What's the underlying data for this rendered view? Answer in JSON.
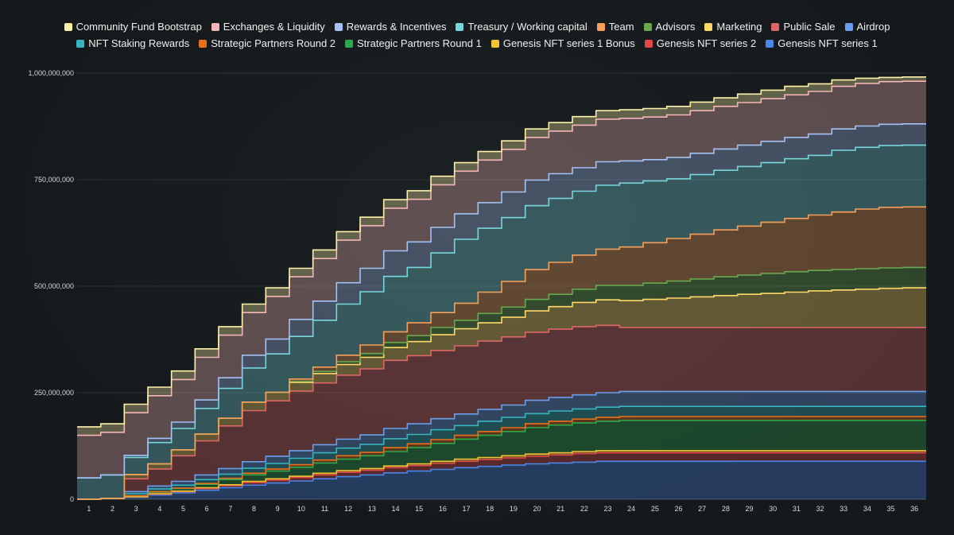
{
  "chart_data": {
    "type": "area",
    "stacked": true,
    "step": true,
    "x": [
      1,
      2,
      3,
      4,
      5,
      6,
      7,
      8,
      9,
      10,
      11,
      12,
      13,
      14,
      15,
      16,
      17,
      18,
      19,
      20,
      21,
      22,
      23,
      24,
      25,
      26,
      27,
      28,
      29,
      30,
      31,
      32,
      33,
      34,
      35,
      36
    ],
    "ylim": [
      0,
      1000000000
    ],
    "yticks": [
      0,
      250000000,
      500000000,
      750000000,
      1000000000
    ],
    "ytick_labels": [
      "0",
      "250,000,000",
      "500,000,000",
      "750,000,000",
      "1,000,000,000"
    ],
    "grid": true,
    "legend_position": "top",
    "series": [
      {
        "name": "Genesis NFT series 1",
        "color": "#4a86e8",
        "values": [
          0,
          2000000,
          5000000,
          10000000,
          15000000,
          21000000,
          27000000,
          33000000,
          38000000,
          43000000,
          48000000,
          53000000,
          57000000,
          62000000,
          66000000,
          70000000,
          74000000,
          77000000,
          80000000,
          83000000,
          85000000,
          87000000,
          89000000,
          89000000,
          89000000,
          89000000,
          89000000,
          89000000,
          89000000,
          89000000,
          89000000,
          89000000,
          89000000,
          89000000,
          89000000,
          89000000
        ]
      },
      {
        "name": "Genesis NFT series 2",
        "color": "#e04848",
        "values": [
          0,
          0,
          1000000,
          2000000,
          3000000,
          4000000,
          5000000,
          6000000,
          7000000,
          8000000,
          9000000,
          10000000,
          11000000,
          12000000,
          13000000,
          14000000,
          15000000,
          16000000,
          17000000,
          18000000,
          19000000,
          20000000,
          20000000,
          20000000,
          20000000,
          20000000,
          20000000,
          20000000,
          20000000,
          20000000,
          20000000,
          20000000,
          20000000,
          20000000,
          20000000,
          20000000
        ]
      },
      {
        "name": "Genesis NFT series 1 Bonus",
        "color": "#f1c232",
        "values": [
          0,
          0,
          0,
          1000000,
          1000000,
          2000000,
          2000000,
          3000000,
          3000000,
          3000000,
          4000000,
          4000000,
          4000000,
          4000000,
          4000000,
          5000000,
          5000000,
          5000000,
          5000000,
          5000000,
          5000000,
          5000000,
          5000000,
          5000000,
          5000000,
          5000000,
          5000000,
          5000000,
          5000000,
          5000000,
          5000000,
          5000000,
          5000000,
          5000000,
          5000000,
          5000000
        ]
      },
      {
        "name": "Strategic Partners Round 1",
        "color": "#2ea84e",
        "values": [
          0,
          0,
          2000000,
          4000000,
          6000000,
          8000000,
          12000000,
          15000000,
          18000000,
          21000000,
          24000000,
          27000000,
          30000000,
          34000000,
          38000000,
          42000000,
          47000000,
          52000000,
          57000000,
          62000000,
          65000000,
          67000000,
          69000000,
          71000000,
          71000000,
          71000000,
          71000000,
          71000000,
          71000000,
          71000000,
          71000000,
          71000000,
          71000000,
          71000000,
          71000000,
          71000000
        ]
      },
      {
        "name": "Strategic Partners Round 2",
        "color": "#e8711c",
        "values": [
          0,
          0,
          0,
          1000000,
          1000000,
          2000000,
          3000000,
          4000000,
          5000000,
          6000000,
          7000000,
          8000000,
          8000000,
          9000000,
          9000000,
          9000000,
          9000000,
          9000000,
          9000000,
          9000000,
          9000000,
          9000000,
          9000000,
          9000000,
          9000000,
          9000000,
          9000000,
          9000000,
          9000000,
          9000000,
          9000000,
          9000000,
          9000000,
          9000000,
          9000000,
          9000000
        ]
      },
      {
        "name": "NFT Staking Rewards",
        "color": "#36b5c0",
        "values": [
          0,
          0,
          5000000,
          6000000,
          7000000,
          9000000,
          10000000,
          12000000,
          13000000,
          15000000,
          17000000,
          18000000,
          19000000,
          21000000,
          22000000,
          23000000,
          23000000,
          24000000,
          24000000,
          24000000,
          24000000,
          24000000,
          24000000,
          24000000,
          24000000,
          24000000,
          24000000,
          24000000,
          24000000,
          24000000,
          24000000,
          24000000,
          24000000,
          24000000,
          24000000,
          24000000
        ]
      },
      {
        "name": "Airdrop",
        "color": "#6d9eeb",
        "values": [
          0,
          0,
          5000000,
          7000000,
          9000000,
          11000000,
          13000000,
          15000000,
          17000000,
          18000000,
          19000000,
          21000000,
          22000000,
          24000000,
          25000000,
          26000000,
          27000000,
          28000000,
          29000000,
          31000000,
          32000000,
          33000000,
          34000000,
          35000000,
          35000000,
          35000000,
          35000000,
          35000000,
          35000000,
          35000000,
          35000000,
          35000000,
          35000000,
          35000000,
          35000000,
          35000000
        ]
      },
      {
        "name": "Public Sale",
        "color": "#e06666",
        "values": [
          0,
          0,
          30000000,
          40000000,
          60000000,
          80000000,
          100000000,
          120000000,
          130000000,
          140000000,
          145000000,
          150000000,
          155000000,
          160000000,
          160000000,
          160000000,
          160000000,
          160000000,
          160000000,
          160000000,
          160000000,
          160000000,
          158000000,
          150000000,
          150000000,
          150000000,
          150000000,
          150000000,
          150000000,
          150000000,
          150000000,
          150000000,
          150000000,
          150000000,
          150000000,
          150000000
        ]
      },
      {
        "name": "Marketing",
        "color": "#ffd966",
        "values": [
          0,
          0,
          10000000,
          12000000,
          14000000,
          16000000,
          18000000,
          20000000,
          20000000,
          20000000,
          22000000,
          25000000,
          27000000,
          30000000,
          33000000,
          37000000,
          40000000,
          43000000,
          46000000,
          50000000,
          53000000,
          57000000,
          60000000,
          63000000,
          66000000,
          69000000,
          72000000,
          75000000,
          78000000,
          80000000,
          83000000,
          86000000,
          88000000,
          90000000,
          92000000,
          93000000
        ]
      },
      {
        "name": "Advisors",
        "color": "#6aa84f",
        "values": [
          0,
          0,
          0,
          0,
          0,
          0,
          0,
          0,
          0,
          3000000,
          5000000,
          7000000,
          9000000,
          12000000,
          14000000,
          17000000,
          20000000,
          22000000,
          24000000,
          27000000,
          29000000,
          31000000,
          34000000,
          36000000,
          38000000,
          40000000,
          42000000,
          44000000,
          45000000,
          47000000,
          48000000,
          48000000,
          48000000,
          48000000,
          48000000,
          48000000
        ]
      },
      {
        "name": "Team",
        "color": "#f6a05b",
        "values": [
          0,
          0,
          0,
          0,
          0,
          0,
          0,
          0,
          0,
          5000000,
          10000000,
          15000000,
          20000000,
          25000000,
          30000000,
          35000000,
          40000000,
          50000000,
          60000000,
          70000000,
          75000000,
          80000000,
          85000000,
          90000000,
          95000000,
          100000000,
          105000000,
          110000000,
          115000000,
          120000000,
          125000000,
          130000000,
          135000000,
          140000000,
          142000000,
          142000000
        ]
      },
      {
        "name": "Treasury / Working capital",
        "color": "#76d7dc",
        "values": [
          50000000,
          55000000,
          40000000,
          50000000,
          50000000,
          60000000,
          70000000,
          80000000,
          90000000,
          100000000,
          110000000,
          120000000,
          125000000,
          130000000,
          130000000,
          140000000,
          150000000,
          150000000,
          150000000,
          150000000,
          150000000,
          150000000,
          150000000,
          150000000,
          145000000,
          140000000,
          140000000,
          140000000,
          140000000,
          140000000,
          140000000,
          140000000,
          145000000,
          145000000,
          145000000,
          145000000
        ]
      },
      {
        "name": "Rewards & Incentives",
        "color": "#a4c2f4",
        "values": [
          0,
          0,
          5000000,
          10000000,
          15000000,
          20000000,
          25000000,
          30000000,
          35000000,
          40000000,
          45000000,
          50000000,
          55000000,
          60000000,
          60000000,
          60000000,
          60000000,
          60000000,
          60000000,
          60000000,
          58000000,
          55000000,
          55000000,
          52000000,
          50000000,
          50000000,
          50000000,
          50000000,
          50000000,
          50000000,
          50000000,
          50000000,
          50000000,
          50000000,
          50000000,
          50000000
        ]
      },
      {
        "name": "Exchanges & Liquidity",
        "color": "#f4b6b6",
        "values": [
          100000000,
          100000000,
          100000000,
          100000000,
          100000000,
          100000000,
          100000000,
          100000000,
          100000000,
          100000000,
          100000000,
          100000000,
          100000000,
          100000000,
          100000000,
          100000000,
          100000000,
          100000000,
          100000000,
          100000000,
          100000000,
          100000000,
          100000000,
          100000000,
          100000000,
          100000000,
          100000000,
          100000000,
          100000000,
          100000000,
          100000000,
          100000000,
          100000000,
          100000000,
          100000000,
          100000000
        ]
      },
      {
        "name": "Community Fund Bootstrap",
        "color": "#fff2a8",
        "values": [
          20000000,
          20000000,
          20000000,
          20000000,
          20000000,
          20000000,
          20000000,
          20000000,
          20000000,
          20000000,
          20000000,
          20000000,
          20000000,
          20000000,
          20000000,
          20000000,
          20000000,
          20000000,
          20000000,
          20000000,
          20000000,
          20000000,
          20000000,
          20000000,
          20000000,
          20000000,
          20000000,
          20000000,
          20000000,
          20000000,
          20000000,
          18000000,
          15000000,
          12000000,
          10000000,
          10000000
        ]
      }
    ]
  },
  "legend_rows": [
    [
      "Community Fund Bootstrap",
      "Exchanges & Liquidity",
      "Rewards & Incentives",
      "Treasury / Working capital",
      "Team",
      "Advisors",
      "Marketing",
      "Public Sale",
      "Airdrop"
    ],
    [
      "NFT Staking Rewards",
      "Strategic Partners Round 2",
      "Strategic Partners Round 1",
      "Genesis NFT series 1 Bonus",
      "Genesis NFT series 2",
      "Genesis NFT series 1"
    ]
  ]
}
